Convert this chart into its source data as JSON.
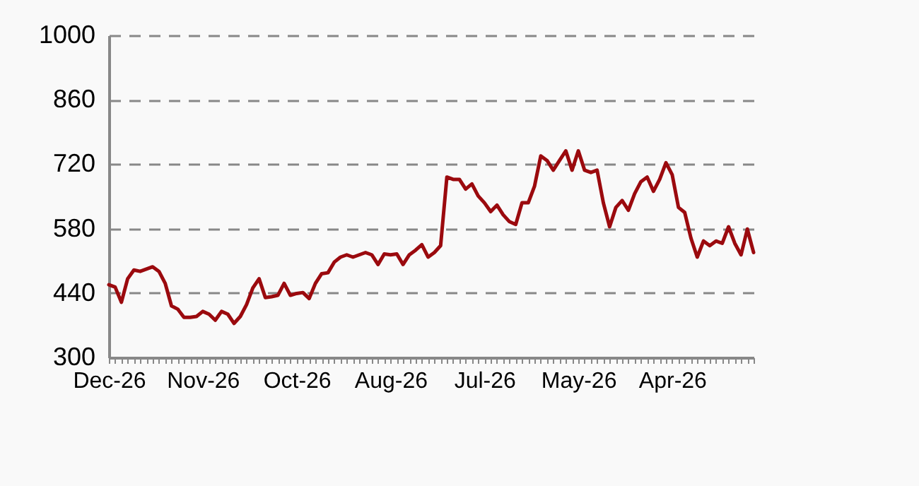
{
  "chart_data": {
    "type": "line",
    "categories": [
      "Dec-26",
      null,
      null,
      null,
      null,
      null,
      null,
      null,
      null,
      null,
      null,
      null,
      null,
      null,
      null,
      "Nov-26",
      null,
      null,
      null,
      null,
      null,
      null,
      null,
      null,
      null,
      null,
      null,
      null,
      null,
      null,
      "Oct-26",
      null,
      null,
      null,
      null,
      null,
      null,
      null,
      null,
      null,
      null,
      null,
      null,
      null,
      null,
      "Aug-26",
      null,
      null,
      null,
      null,
      null,
      null,
      null,
      null,
      null,
      null,
      null,
      null,
      null,
      null,
      "Jul-26",
      null,
      null,
      null,
      null,
      null,
      null,
      null,
      null,
      null,
      null,
      null,
      null,
      null,
      null,
      "May-26",
      null,
      null,
      null,
      null,
      null,
      null,
      null,
      null,
      null,
      null,
      null,
      null,
      null,
      null,
      "Apr-26",
      null,
      null,
      null,
      null,
      null,
      null,
      null,
      null,
      null,
      null,
      null,
      null,
      null
    ],
    "series": [
      {
        "color": "#9b0a0e",
        "values": [
          458,
          453,
          420,
          471,
          490,
          487,
          492,
          497,
          487,
          461,
          412,
          405,
          387,
          387,
          389,
          400,
          394,
          381,
          400,
          394,
          374,
          389,
          415,
          451,
          471,
          430,
          432,
          435,
          461,
          435,
          439,
          441,
          428,
          461,
          482,
          484,
          507,
          518,
          523,
          518,
          523,
          528,
          523,
          502,
          525,
          523,
          525,
          502,
          523,
          533,
          545,
          518,
          528,
          543,
          692,
          687,
          687,
          666,
          677,
          651,
          636,
          617,
          631,
          610,
          595,
          589,
          636,
          636,
          672,
          738,
          728,
          707,
          728,
          749,
          707,
          749,
          707,
          702,
          707,
          636,
          584,
          626,
          641,
          620,
          656,
          682,
          692,
          661,
          687,
          723,
          697,
          626,
          615,
          559,
          518,
          553,
          543,
          553,
          548,
          584,
          548,
          523,
          579,
          528
        ]
      }
    ],
    "ylim": [
      300,
      1000
    ],
    "yticks": [
      300,
      440,
      580,
      720,
      860,
      1000
    ],
    "grid": "y",
    "marker": "none",
    "line_style": "solid"
  }
}
